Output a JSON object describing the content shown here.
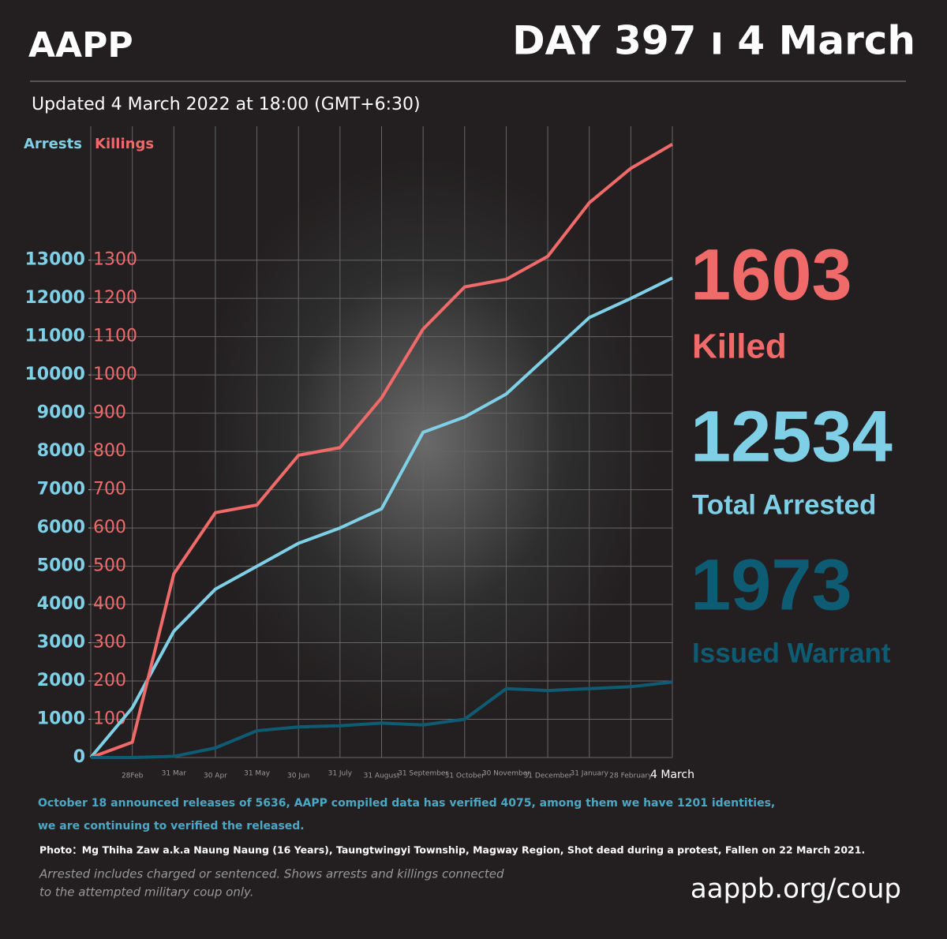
{
  "header": {
    "brand": "AAPP",
    "day": "DAY 397 ı 4 March",
    "updated": "Updated  4 March 2022 at 18:00 (GMT+6:30)"
  },
  "chart_data": {
    "type": "line",
    "categories": [
      null,
      "28Feb",
      "31 Mar",
      "30 Apr",
      "31 May",
      "30 Jun",
      "31 July",
      "31 August",
      "31 September",
      "31 October",
      "30 November",
      "31 December",
      "31 January",
      "28 February",
      "4 March"
    ],
    "series": [
      {
        "name": "Arrests",
        "color": "#7fd0e6",
        "axis": "y",
        "values": [
          0,
          1300,
          3300,
          4400,
          5000,
          5600,
          6000,
          6500,
          8500,
          8900,
          9500,
          10500,
          11500,
          12000,
          12534
        ]
      },
      {
        "name": "Killings",
        "color": "#f06a6a",
        "axis": "y2",
        "values": [
          0,
          40,
          480,
          640,
          660,
          790,
          810,
          940,
          1120,
          1230,
          1250,
          1310,
          1450,
          1540,
          1603
        ]
      },
      {
        "color": "#0e5c74",
        "axis": "y",
        "values": [
          0,
          0,
          30,
          250,
          700,
          800,
          830,
          900,
          850,
          1000,
          1800,
          1750,
          1800,
          1850,
          1973
        ]
      }
    ],
    "ylim": [
      0,
      16500
    ],
    "yticks": [
      0,
      1000,
      2000,
      3000,
      4000,
      5000,
      6000,
      7000,
      8000,
      9000,
      10000,
      11000,
      12000,
      13000
    ],
    "y2lim": [
      0,
      1650
    ],
    "y2ticks": [
      100,
      200,
      300,
      400,
      500,
      600,
      700,
      800,
      900,
      1000,
      1100,
      1200,
      1300
    ],
    "grid": true
  },
  "stats": [
    {
      "value": 1603,
      "label": "Killed",
      "color": "#f06a6a"
    },
    {
      "value": 12534,
      "label": "Total Arrested",
      "color": "#7fd0e6"
    },
    {
      "value": 1973,
      "label": "Issued Warrant",
      "color": "#0e5c74"
    }
  ],
  "notes": {
    "releases": [
      "October 18 announced releases of 5636, AAPP compiled data has verified 4075, among them we have 1201 identities,",
      "we are continuing to verified the released."
    ],
    "photo": "Photo：Mg Thiha Zaw a.k.a Naung Naung (16 Years), Taungtwingyi Township, Magway Region, Shot dead during a protest, Fallen on 22 March 2021.",
    "disclaimer": [
      "Arrested includes charged or sentenced. Shows arrests and killings connected",
      "to the attempted military coup only."
    ],
    "url": "aappb.org/coup"
  }
}
